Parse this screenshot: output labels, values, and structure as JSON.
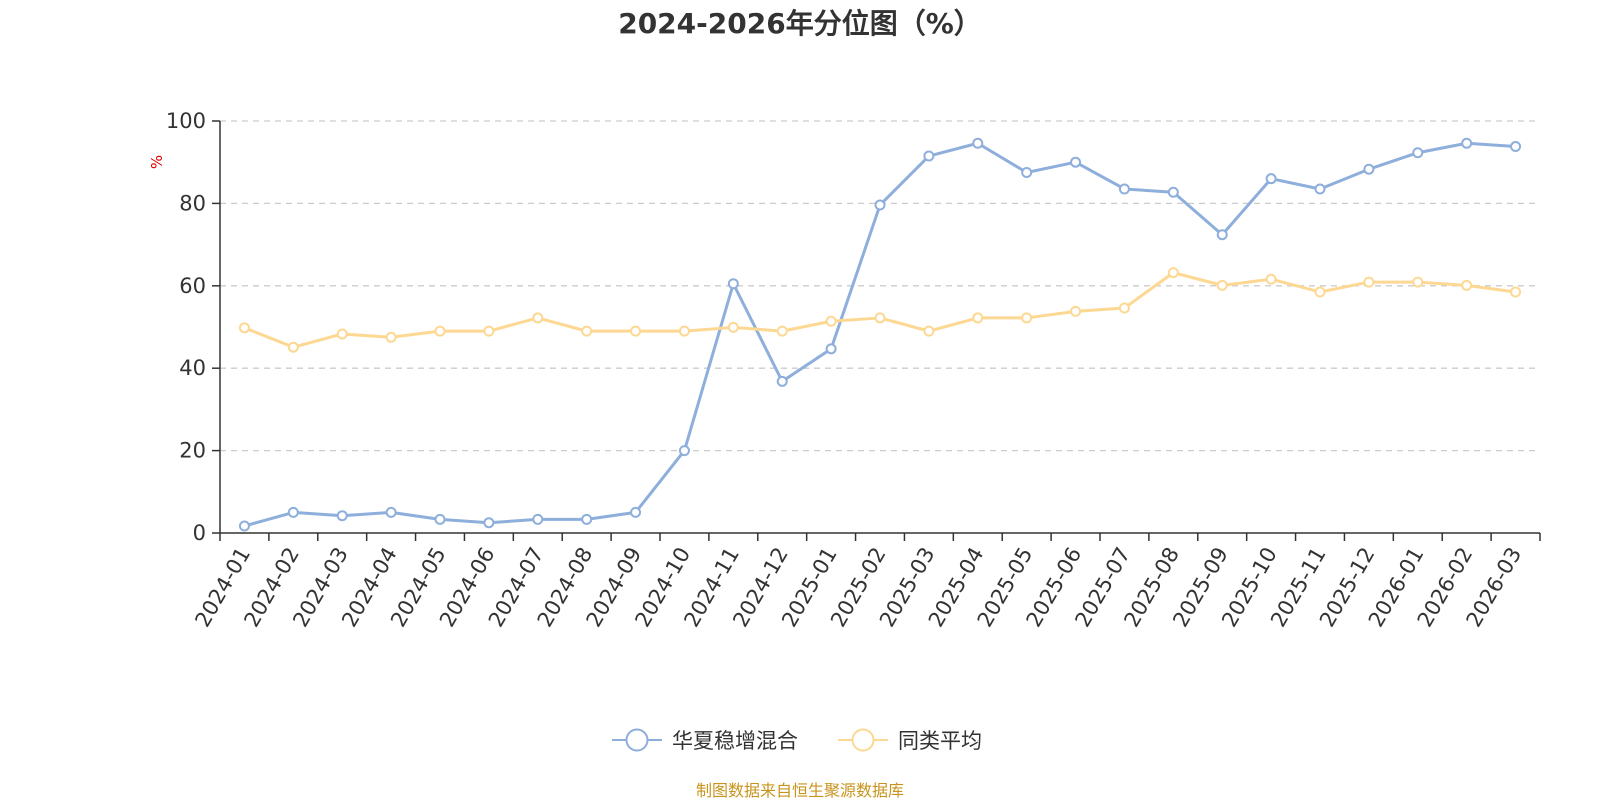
{
  "chart_data": {
    "type": "line",
    "title": "2024-2026年分位图（%）",
    "ylabel": "%",
    "xlabel": "",
    "ylim": [
      0,
      100
    ],
    "yticks": [
      0,
      20,
      40,
      60,
      80,
      100
    ],
    "grid": true,
    "legend_position": "bottom-center",
    "categories": [
      "2024-01",
      "2024-02",
      "2024-03",
      "2024-04",
      "2024-05",
      "2024-06",
      "2024-07",
      "2024-08",
      "2024-09",
      "2024-10",
      "2024-11",
      "2024-12",
      "2025-01",
      "2025-02",
      "2025-03",
      "2025-04",
      "2025-05",
      "2025-06",
      "2025-07",
      "2025-08",
      "2025-09",
      "2025-10",
      "2025-11",
      "2025-12",
      "2026-01",
      "2026-02",
      "2026-03"
    ],
    "series": [
      {
        "name": "华夏稳增混合",
        "color": "#8eaedb",
        "values": [
          1.7,
          5.0,
          4.2,
          5.0,
          3.3,
          2.5,
          3.3,
          3.3,
          5.0,
          20.0,
          60.5,
          36.8,
          44.7,
          79.6,
          91.5,
          94.6,
          87.5,
          90.0,
          83.5,
          82.7,
          72.4,
          86.0,
          83.5,
          88.3,
          92.3,
          94.6,
          93.8
        ]
      },
      {
        "name": "同类平均",
        "color": "#fdd893",
        "values": [
          49.8,
          45.1,
          48.3,
          47.5,
          49.0,
          49.0,
          52.2,
          49.0,
          49.0,
          49.0,
          49.9,
          49.0,
          51.4,
          52.2,
          49.0,
          52.2,
          52.2,
          53.8,
          54.6,
          63.2,
          60.1,
          61.6,
          58.5,
          60.9,
          60.9,
          60.1,
          58.5
        ]
      }
    ],
    "source": "制图数据来自恒生聚源数据库",
    "source_color": "#c8941e",
    "unit_color": "#e00000"
  }
}
